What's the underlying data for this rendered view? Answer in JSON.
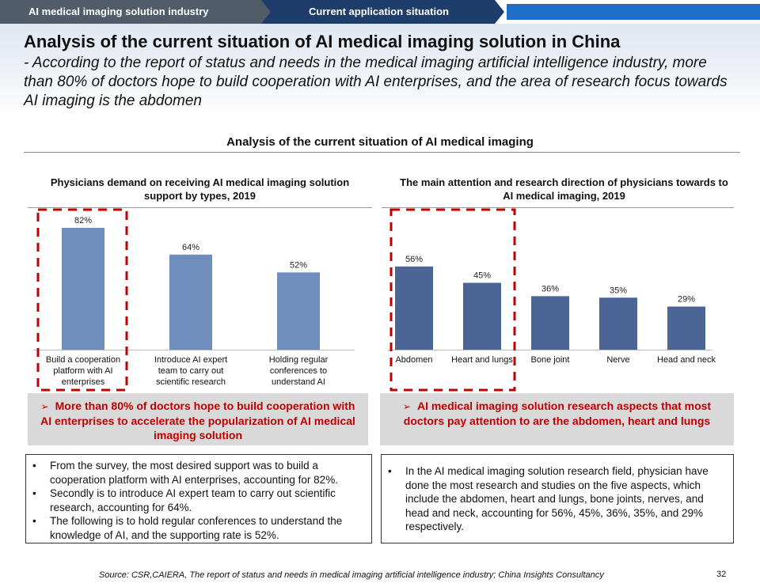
{
  "nav": {
    "tab1": "AI medical imaging solution industry",
    "tab2": "Current application situation"
  },
  "header": {
    "title": "Analysis of the current situation of AI medical imaging solution in China",
    "subtitle": "- According to the report of status and needs in the medical imaging artificial intelligence industry, more than 80% of doctors hope to build cooperation with AI enterprises, and the area of research focus towards AI imaging is the abdomen"
  },
  "section_title": "Analysis of the current situation of AI medical imaging",
  "colors": {
    "left_bar": "#6f8ebd",
    "right_bar": "#4a6596",
    "highlight_box": "#c00000",
    "callout_text": "#c00000",
    "nav_dark": "#505c6a",
    "nav_active": "#1f3d6b"
  },
  "chart_data": [
    {
      "type": "bar",
      "title": "Physicians demand on receiving AI medical imaging solution support by types, 2019",
      "categories": [
        "Build a cooperation platform with AI enterprises",
        "Introduce AI expert team to carry out scientific research",
        "Holding regular conferences to understand AI"
      ],
      "values": [
        82,
        64,
        52
      ],
      "value_labels": [
        "82%",
        "64%",
        "52%"
      ],
      "highlighted": [
        0
      ],
      "grid": false,
      "legend": "none"
    },
    {
      "type": "bar",
      "title": "The main attention and research direction of physicians towards to AI medical imaging, 2019",
      "categories": [
        "Abdomen",
        "Heart and lungs",
        "Bone joint",
        "Nerve",
        "Head and neck"
      ],
      "values": [
        56,
        45,
        36,
        35,
        29
      ],
      "value_labels": [
        "56%",
        "45%",
        "36%",
        "35%",
        "29%"
      ],
      "highlighted": [
        0,
        1
      ],
      "grid": false,
      "legend": "none"
    }
  ],
  "callouts": {
    "left": "More than 80% of doctors hope to build cooperation with AI enterprises to accelerate the popularization of AI medical imaging solution",
    "right": "AI medical imaging solution research aspects that most doctors pay attention to are the abdomen, heart and lungs"
  },
  "notes_left": [
    "From the survey, the most desired support was to build a cooperation platform with AI enterprises, accounting for 82%.",
    "Secondly is to introduce AI expert team to carry out scientific research, accounting for 64%.",
    "The following is to hold regular conferences to understand the knowledge of AI, and the supporting rate is 52%."
  ],
  "notes_right": [
    "In the AI medical imaging solution research field, physician have done the most research and studies on the five aspects, which include the abdomen, heart and lungs, bone joints, nerves, and head and neck, accounting for 56%, 45%, 36%, 35%, and 29% respectively."
  ],
  "bullet_glyph": "•",
  "arrow_glyph": "➢",
  "footer": {
    "source": "Source: CSR,CAIERA, The report of status and needs in medical imaging artificial intelligence industry; China Insights Consultancy",
    "page": "32"
  }
}
